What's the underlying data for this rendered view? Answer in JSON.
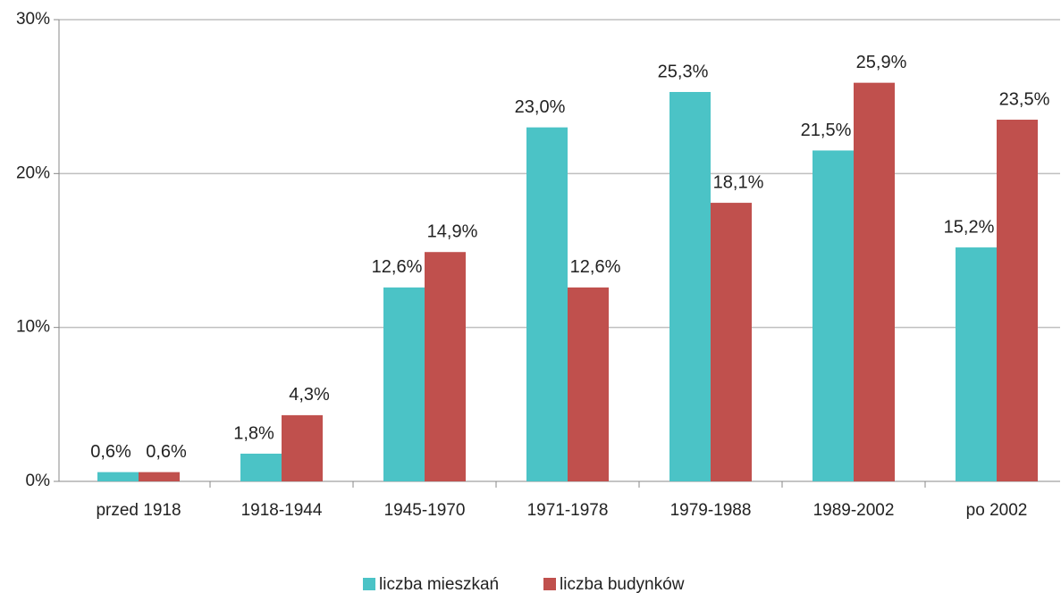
{
  "chart_data": {
    "type": "bar",
    "categories": [
      "przed 1918",
      "1918-1944",
      "1945-1970",
      "1971-1978",
      "1979-1988",
      "1989-2002",
      "po 2002"
    ],
    "series": [
      {
        "name": "liczba mieszkań",
        "color": "#4bc3c6",
        "values": [
          0.6,
          1.8,
          12.6,
          23.0,
          25.3,
          21.5,
          15.2
        ],
        "value_labels": [
          "0,6%",
          "1,8%",
          "12,6%",
          "23,0%",
          "25,3%",
          "21,5%",
          "15,2%"
        ]
      },
      {
        "name": "liczba budynków",
        "color": "#c0504d",
        "values": [
          0.6,
          4.3,
          14.9,
          12.6,
          18.1,
          25.9,
          23.5
        ],
        "value_labels": [
          "0,6%",
          "4,3%",
          "14,9%",
          "12,6%",
          "18,1%",
          "25,9%",
          "23,5%"
        ]
      }
    ],
    "ylim": [
      0,
      30
    ],
    "yticks": [
      {
        "value": 0,
        "label": "0%"
      },
      {
        "value": 10,
        "label": "10%"
      },
      {
        "value": 20,
        "label": "20%"
      },
      {
        "value": 30,
        "label": "30%"
      }
    ],
    "grid": true,
    "legend": "bottom"
  }
}
